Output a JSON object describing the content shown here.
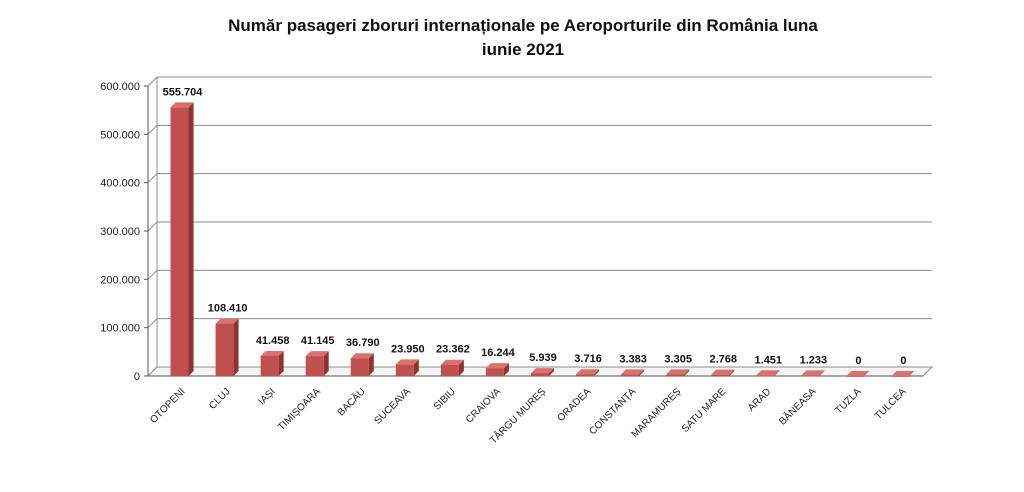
{
  "chart_data": {
    "type": "bar",
    "title_line1": "Număr pasageri zboruri internaționale pe Aeroporturile din România luna",
    "title_line2": "iunie 2021",
    "categories": [
      "OTOPENI",
      "CLUJ",
      "IAȘI",
      "TIMIȘOARA",
      "BACĂU",
      "SUCEAVA",
      "SIBIU",
      "CRAIOVA",
      "TÂRGU MUREȘ",
      "ORADEA",
      "CONSTANȚA",
      "MARAMUREȘ",
      "SATU MARE",
      "ARAD",
      "BĂNEASA",
      "TUZLA",
      "TULCEA"
    ],
    "values": [
      555704,
      108410,
      41458,
      41145,
      36790,
      23950,
      23362,
      16244,
      5939,
      3716,
      3383,
      3305,
      2768,
      1451,
      1233,
      0,
      0
    ],
    "value_labels": [
      "555.704",
      "108.410",
      "41.458",
      "41.145",
      "36.790",
      "23.950",
      "23.362",
      "16.244",
      "5.939",
      "3.716",
      "3.383",
      "3.305",
      "2.768",
      "1.451",
      "1.233",
      "0",
      "0"
    ],
    "ylim": [
      0,
      600000
    ],
    "yticks": [
      0,
      100000,
      200000,
      300000,
      400000,
      500000,
      600000
    ],
    "ytick_labels": [
      "0",
      "100.000",
      "200.000",
      "300.000",
      "400.000",
      "500.000",
      "600.000"
    ],
    "grid": true,
    "legend": "none",
    "bar_color": "#c0504d"
  }
}
